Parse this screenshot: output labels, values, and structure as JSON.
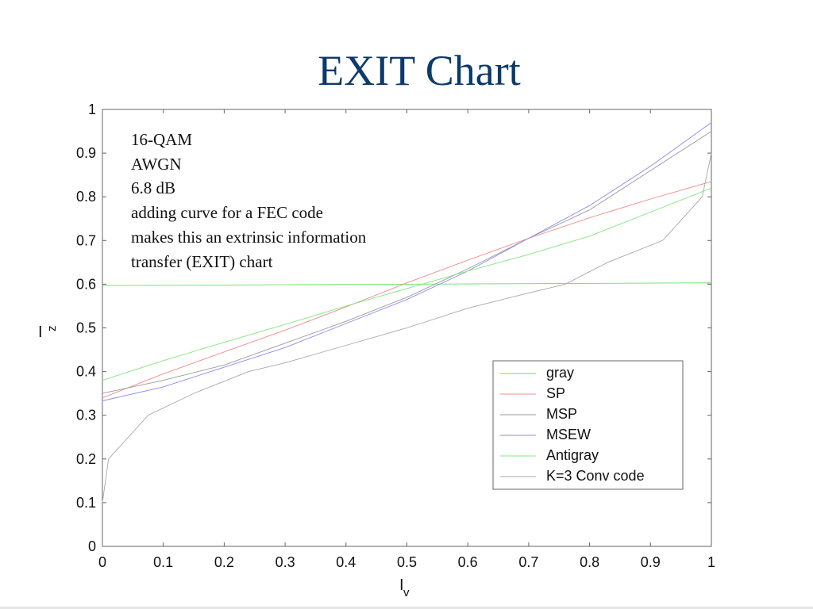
{
  "slide": {
    "title": "EXIT Chart",
    "annotation_lines": [
      "16-QAM",
      "AWGN",
      "6.8 dB",
      "adding curve for a FEC code",
      "makes this an extrinsic information",
      "transfer (EXIT) chart"
    ]
  },
  "chart_data": {
    "type": "line",
    "xlabel": "I",
    "xlabel_sub": "v",
    "ylabel": "I",
    "ylabel_sub": "z",
    "xlim": [
      0,
      1
    ],
    "ylim": [
      0,
      1
    ],
    "xticks": [
      "0",
      "0.1",
      "0.2",
      "0.3",
      "0.4",
      "0.5",
      "0.6",
      "0.7",
      "0.8",
      "0.9",
      "1"
    ],
    "yticks": [
      "0",
      "0.1",
      "0.2",
      "0.3",
      "0.4",
      "0.5",
      "0.6",
      "0.7",
      "0.8",
      "0.9",
      "1"
    ],
    "grid": false,
    "legend_position": "right, lower-middle",
    "series": [
      {
        "name": "gray",
        "color": "#66e066",
        "x": [
          0,
          1
        ],
        "y": [
          0.597,
          0.603
        ]
      },
      {
        "name": "SP",
        "color": "#f08c8c",
        "x": [
          0,
          0.1,
          0.2,
          0.3,
          0.4,
          0.5,
          0.6,
          0.7,
          0.8,
          0.9,
          1.0
        ],
        "y": [
          0.34,
          0.395,
          0.445,
          0.495,
          0.548,
          0.603,
          0.655,
          0.705,
          0.752,
          0.795,
          0.835
        ]
      },
      {
        "name": "MSP",
        "color": "#9a9a9a",
        "x": [
          0,
          0.1,
          0.2,
          0.3,
          0.4,
          0.5,
          0.6,
          0.7,
          0.8,
          0.9,
          1.0
        ],
        "y": [
          0.35,
          0.38,
          0.415,
          0.465,
          0.515,
          0.57,
          0.635,
          0.705,
          0.77,
          0.86,
          0.95
        ]
      },
      {
        "name": "MSEW",
        "color": "#8c8cf0",
        "x": [
          0,
          0.1,
          0.2,
          0.3,
          0.4,
          0.5,
          0.6,
          0.7,
          0.8,
          0.9,
          1.0
        ],
        "y": [
          0.333,
          0.365,
          0.41,
          0.455,
          0.51,
          0.565,
          0.63,
          0.705,
          0.78,
          0.87,
          0.97
        ]
      },
      {
        "name": "Antigray",
        "color": "#80e880",
        "x": [
          0,
          0.1,
          0.2,
          0.3,
          0.4,
          0.5,
          0.6,
          0.7,
          0.8,
          0.9,
          1.0
        ],
        "y": [
          0.38,
          0.425,
          0.467,
          0.508,
          0.55,
          0.59,
          0.63,
          0.668,
          0.71,
          0.765,
          0.82
        ]
      },
      {
        "name": "K=3 Conv code",
        "color": "#a8a8a8",
        "x": [
          0,
          0.01,
          0.075,
          0.15,
          0.24,
          0.3,
          0.4,
          0.5,
          0.6,
          0.7,
          0.76,
          0.83,
          0.92,
          0.985,
          1.0
        ],
        "y": [
          0.1,
          0.2,
          0.3,
          0.35,
          0.4,
          0.42,
          0.46,
          0.5,
          0.545,
          0.58,
          0.6,
          0.65,
          0.7,
          0.8,
          0.9
        ]
      }
    ]
  }
}
